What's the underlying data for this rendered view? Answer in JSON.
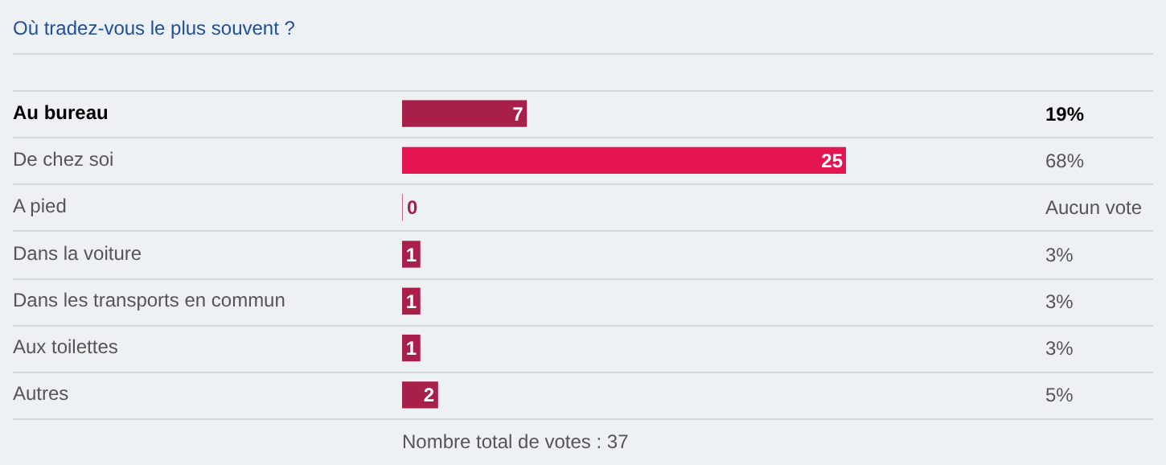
{
  "chart_data": {
    "type": "bar",
    "orientation": "horizontal",
    "title": "Où tradez-vous le plus souvent ?",
    "categories": [
      "Au bureau",
      "De chez soi",
      "A pied",
      "Dans la voiture",
      "Dans les transports en commun",
      "Aux toilettes",
      "Autres"
    ],
    "values": [
      7,
      25,
      0,
      1,
      1,
      1,
      2
    ],
    "colors": [
      "#a8204a",
      "#e4154f",
      "#a8204a",
      "#a8204a",
      "#a8204a",
      "#a8204a",
      "#a8204a"
    ],
    "data_labels": true,
    "annotations": [
      "19%",
      "68%",
      "Aucun vote",
      "3%",
      "3%",
      "3%",
      "5%",
      "Nombre total de votes : 37"
    ]
  }
}
